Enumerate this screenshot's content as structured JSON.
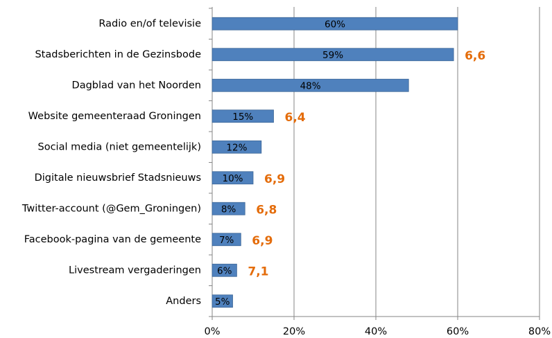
{
  "chart_data": {
    "type": "bar",
    "orientation": "horizontal",
    "categories": [
      "Radio en/of televisie",
      "Stadsberichten in de Gezinsbode",
      "Dagblad van het Noorden",
      "Website gemeenteraad Groningen",
      "Social media (niet gemeentelijk)",
      "Digitale nieuwsbrief Stadsnieuws",
      "Twitter-account (@Gem_Groningen)",
      "Facebook-pagina van de gemeente",
      "Livestream vergaderingen",
      "Anders"
    ],
    "values": [
      60,
      59,
      48,
      15,
      12,
      10,
      8,
      7,
      6,
      5
    ],
    "value_labels": [
      "60%",
      "59%",
      "48%",
      "15%",
      "12%",
      "10%",
      "8%",
      "7%",
      "6%",
      "5%"
    ],
    "scores": [
      null,
      "6,6",
      null,
      "6,4",
      null,
      "6,9",
      "6,8",
      "6,9",
      "7,1",
      null
    ],
    "color": "#4f81bd",
    "xlim": [
      0,
      80
    ],
    "xticks": [
      {
        "value": 0,
        "label": "0%"
      },
      {
        "value": 20,
        "label": "20%"
      },
      {
        "value": 40,
        "label": "40%"
      },
      {
        "value": 60,
        "label": "60%"
      },
      {
        "value": 80,
        "label": "80%"
      }
    ],
    "grid": true
  }
}
